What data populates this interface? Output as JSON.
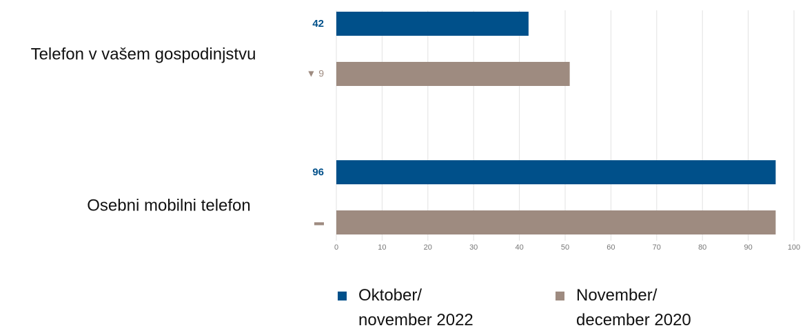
{
  "chart_data": {
    "type": "hbar",
    "categories": [
      "Telefon v vašem gospodinjstvu",
      "Osebni mobilni telefon"
    ],
    "series": [
      {
        "name": "Oktober/\nnovember 2022",
        "color": "#00508a",
        "values": [
          42,
          96
        ]
      },
      {
        "name": "November/\ndecember 2020",
        "color": "#9e8b80",
        "values": [
          51,
          96
        ]
      }
    ],
    "change_labels": [
      "▼ 9",
      "▬"
    ],
    "xlim": [
      0,
      100
    ],
    "xticks": [
      0,
      10,
      20,
      30,
      40,
      50,
      60,
      70,
      80,
      90,
      100
    ],
    "grid": true
  }
}
